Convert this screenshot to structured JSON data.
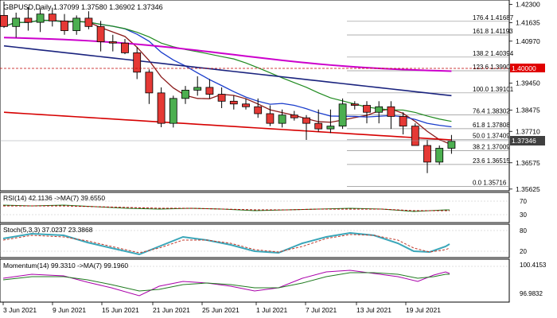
{
  "main": {
    "header": "GBPUSD,Daily  1.37099 1.37580 1.36902 1.37346",
    "ylim": [
      1.3562,
      1.424
    ],
    "price_labels": [
      {
        "text": "1.42300",
        "value": 1.423
      },
      {
        "text": "1.41635",
        "value": 1.41635
      },
      {
        "text": "1.40970",
        "value": 1.4097
      },
      {
        "text": "1.40000",
        "value": 1.4
      },
      {
        "text": "1.39450",
        "value": 1.3945
      },
      {
        "text": "1.38475",
        "value": 1.38475
      },
      {
        "text": "1.37710",
        "value": 1.3771
      },
      {
        "text": "1.36575",
        "value": 1.36575
      },
      {
        "text": "1.35625",
        "value": 1.35625
      }
    ],
    "current_price": {
      "text": "1.37346",
      "value": 1.37346,
      "color": "#404040"
    },
    "level_tag": {
      "text": "1.40000",
      "value": 1.4,
      "color": "#e00000"
    },
    "fib_levels": [
      {
        "label": "176.4 1.41687",
        "value": 1.41687
      },
      {
        "label": "161.8 1.41193",
        "value": 1.41193
      },
      {
        "label": "138.2 1.40394",
        "value": 1.40394
      },
      {
        "label": "123.6 1.39900",
        "value": 1.399
      },
      {
        "label": "100.0 1.39101",
        "value": 1.39101
      },
      {
        "label": "76.4 1.38302",
        "value": 1.38302
      },
      {
        "label": "61.8 1.37808",
        "value": 1.37808
      },
      {
        "label": "50.0 1.37409",
        "value": 1.37409
      },
      {
        "label": "38.2 1.37009",
        "value": 1.37009
      },
      {
        "label": "23.6 1.36515",
        "value": 1.36515
      },
      {
        "label": "0.0 1.35716",
        "value": 1.35716
      }
    ]
  },
  "rsi": {
    "header": "RSI(14) 42.1136  ->MA(7) 39.6550",
    "ticks": [
      {
        "text": "70",
        "value": 70
      },
      {
        "text": "30",
        "value": 30
      }
    ]
  },
  "stoch": {
    "header": "Stoch(5,3,3) 37.0237 23.3868",
    "ticks": [
      {
        "text": "80",
        "value": 80
      },
      {
        "text": "20",
        "value": 20
      }
    ]
  },
  "momentum": {
    "header": "Momentum(14) 99.3310  ->MA(7) 99.1960",
    "ticks": [
      {
        "text": "100.4153",
        "value": 100.4153
      },
      {
        "text": "96.9832",
        "value": 96.9832
      }
    ]
  },
  "x_labels": [
    "3 Jun 2021",
    "9 Jun 2021",
    "15 Jun 2021",
    "21 Jun 2021",
    "25 Jun 2021",
    "1 Jul 2021",
    "7 Jul 2021",
    "13 Jul 2021",
    "19 Jul 2021"
  ],
  "chart_data": {
    "type": "candlestick",
    "dates": [
      "2021-06-01",
      "2021-06-02",
      "2021-06-03",
      "2021-06-04",
      "2021-06-07",
      "2021-06-08",
      "2021-06-09",
      "2021-06-10",
      "2021-06-11",
      "2021-06-14",
      "2021-06-15",
      "2021-06-16",
      "2021-06-17",
      "2021-06-18",
      "2021-06-21",
      "2021-06-22",
      "2021-06-23",
      "2021-06-24",
      "2021-06-25",
      "2021-06-28",
      "2021-06-29",
      "2021-06-30",
      "2021-07-01",
      "2021-07-02",
      "2021-07-05",
      "2021-07-06",
      "2021-07-07",
      "2021-07-08",
      "2021-07-09",
      "2021-07-12",
      "2021-07-13",
      "2021-07-14",
      "2021-07-15",
      "2021-07-16",
      "2021-07-19",
      "2021-07-20",
      "2021-07-21",
      "2021-07-22"
    ],
    "ohlc": [
      [
        1.419,
        1.424,
        1.4145,
        1.415
      ],
      [
        1.415,
        1.42,
        1.411,
        1.418
      ],
      [
        1.418,
        1.422,
        1.4135,
        1.4165
      ],
      [
        1.4165,
        1.4215,
        1.413,
        1.4195
      ],
      [
        1.4195,
        1.4218,
        1.415,
        1.417
      ],
      [
        1.417,
        1.4195,
        1.412,
        1.4135
      ],
      [
        1.4135,
        1.419,
        1.412,
        1.418
      ],
      [
        1.418,
        1.4205,
        1.414,
        1.415
      ],
      [
        1.415,
        1.417,
        1.406,
        1.4095
      ],
      [
        1.4095,
        1.412,
        1.406,
        1.409
      ],
      [
        1.409,
        1.4105,
        1.405,
        1.4055
      ],
      [
        1.4055,
        1.4075,
        1.396,
        1.3985
      ],
      [
        1.3985,
        1.3995,
        1.387,
        1.391
      ],
      [
        1.391,
        1.393,
        1.3786,
        1.38
      ],
      [
        1.38,
        1.39,
        1.3785,
        1.389
      ],
      [
        1.389,
        1.3935,
        1.387,
        1.392
      ],
      [
        1.392,
        1.397,
        1.39,
        1.393
      ],
      [
        1.393,
        1.396,
        1.389,
        1.3905
      ],
      [
        1.3905,
        1.393,
        1.3855,
        1.388
      ],
      [
        1.388,
        1.39,
        1.385,
        1.387
      ],
      [
        1.387,
        1.389,
        1.385,
        1.386
      ],
      [
        1.386,
        1.389,
        1.382,
        1.3835
      ],
      [
        1.3835,
        1.3865,
        1.379,
        1.38
      ],
      [
        1.38,
        1.385,
        1.3785,
        1.383
      ],
      [
        1.383,
        1.3845,
        1.381,
        1.382
      ],
      [
        1.382,
        1.383,
        1.374,
        1.38
      ],
      [
        1.38,
        1.385,
        1.377,
        1.378
      ],
      [
        1.378,
        1.385,
        1.3765,
        1.379
      ],
      [
        1.379,
        1.389,
        1.378,
        1.387
      ],
      [
        1.387,
        1.388,
        1.385,
        1.3865
      ],
      [
        1.3865,
        1.388,
        1.38,
        1.384
      ],
      [
        1.384,
        1.388,
        1.38,
        1.386
      ],
      [
        1.386,
        1.388,
        1.378,
        1.3825
      ],
      [
        1.3825,
        1.384,
        1.376,
        1.379
      ],
      [
        1.379,
        1.38,
        1.372,
        1.372
      ],
      [
        1.372,
        1.374,
        1.362,
        1.366
      ],
      [
        1.366,
        1.372,
        1.365,
        1.371
      ],
      [
        1.371,
        1.3758,
        1.369,
        1.3735
      ]
    ],
    "levels": [
      1.41687,
      1.41193,
      1.40394,
      1.399,
      1.39101,
      1.38302,
      1.37808,
      1.37409,
      1.37009,
      1.36515,
      1.35716
    ]
  }
}
